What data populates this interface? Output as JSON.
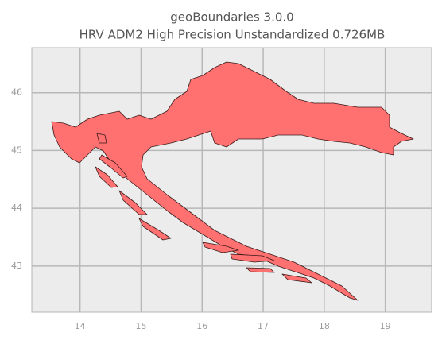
{
  "chart_data": {
    "type": "map",
    "title": "geoBoundaries 3.0.0",
    "subtitle": "HRV ADM2 High Precision Unstandardized 0.726MB",
    "xlim": [
      13.21,
      19.76
    ],
    "ylim": [
      42.2,
      46.78
    ],
    "xticks": [
      14,
      15,
      16,
      17,
      18,
      19
    ],
    "yticks": [
      43,
      44,
      45,
      46
    ],
    "grid": true,
    "color": "#ff7070"
  }
}
